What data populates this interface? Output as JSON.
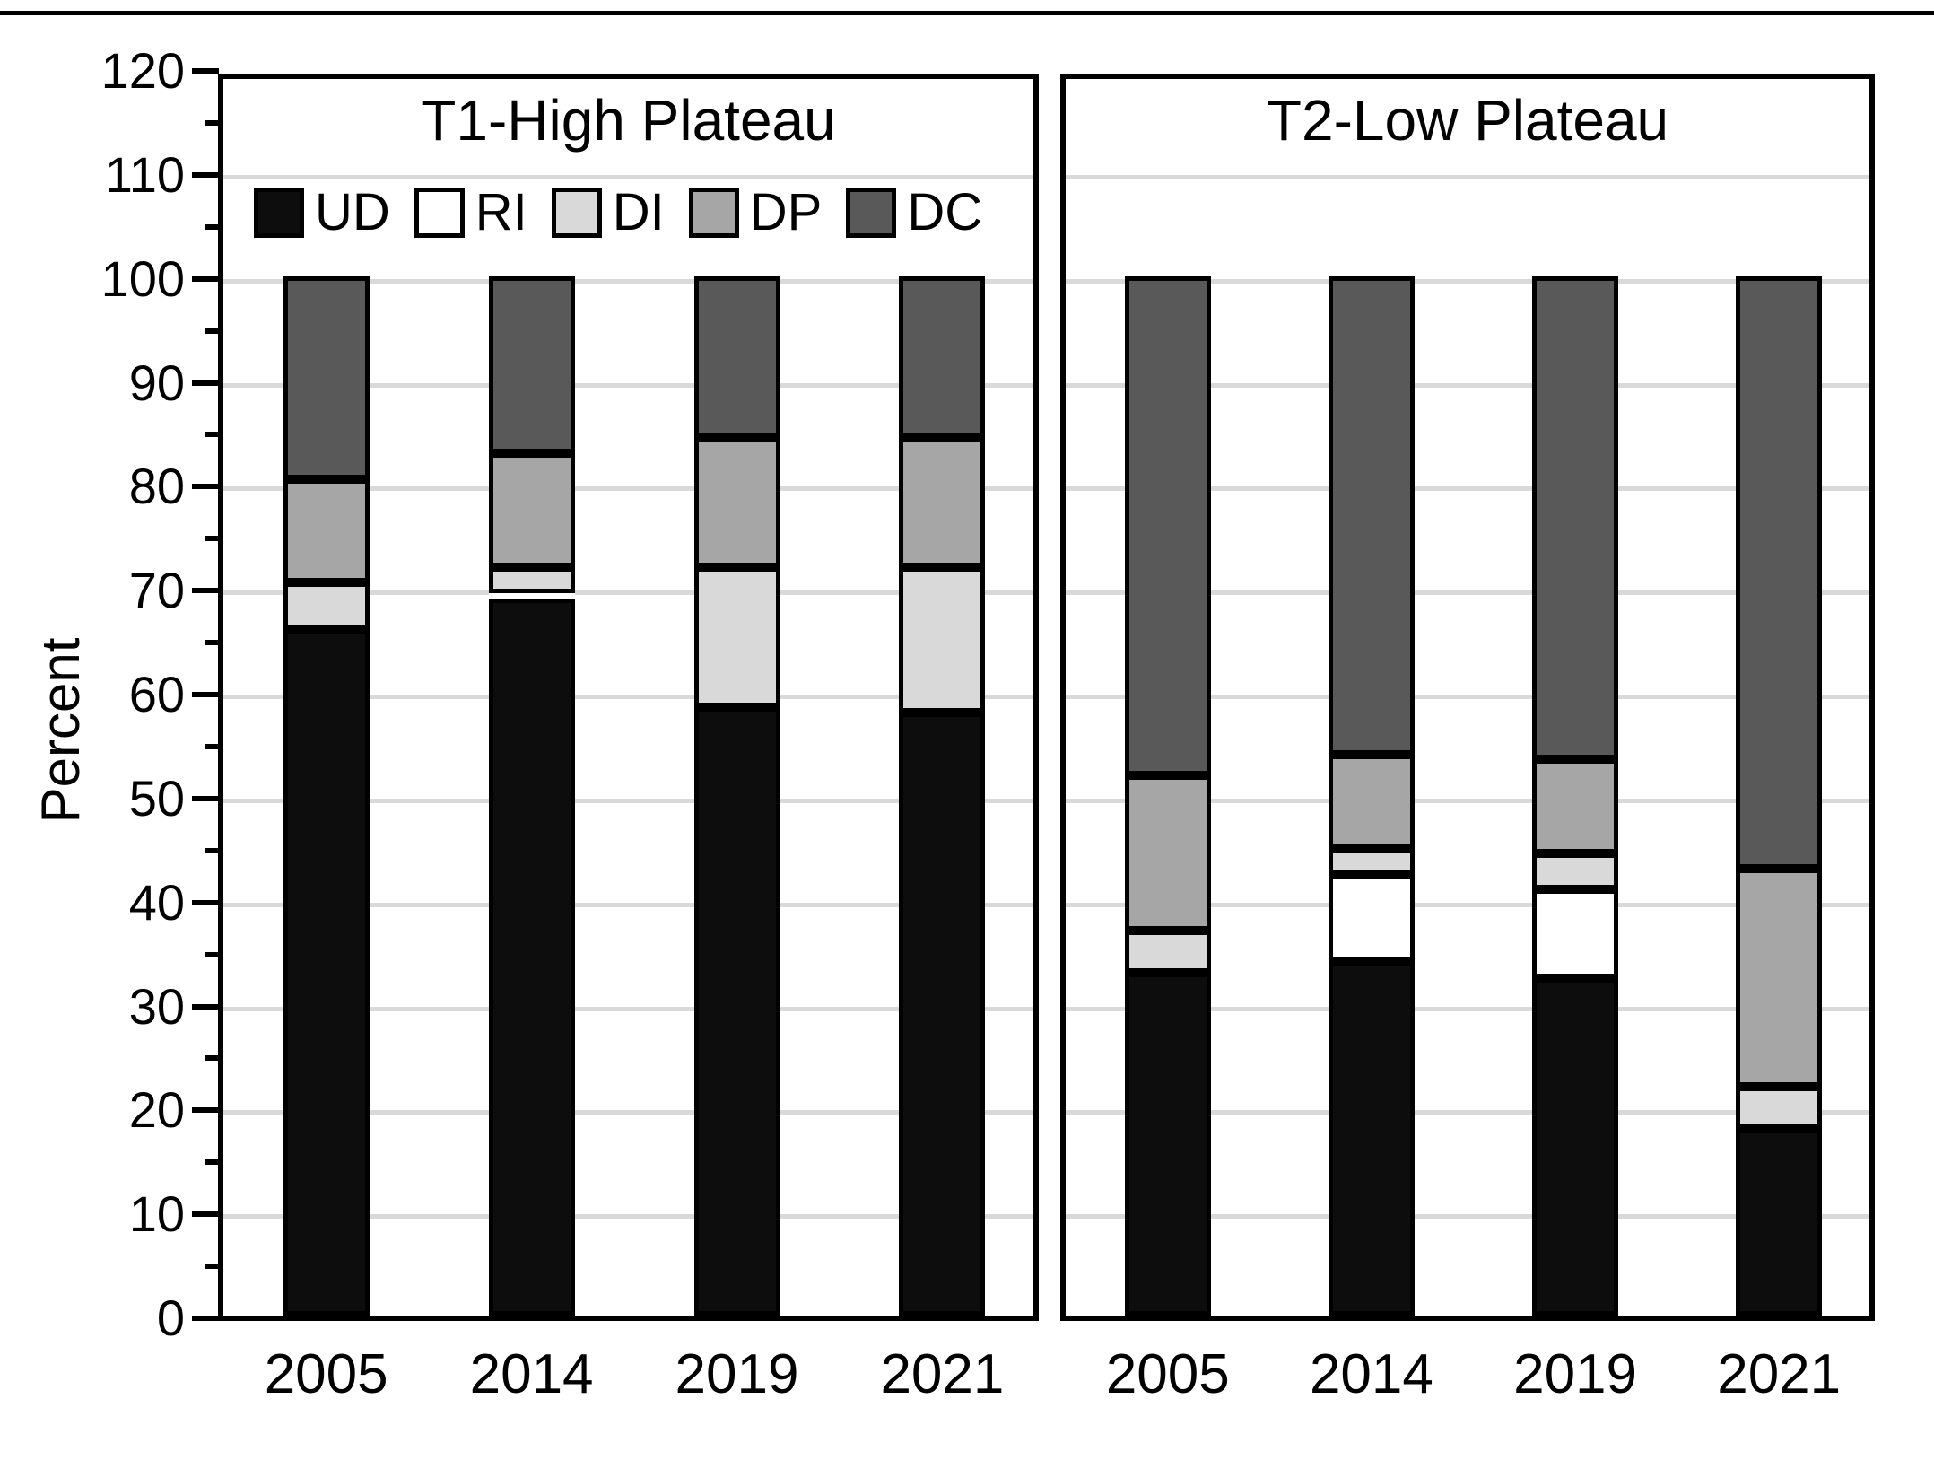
{
  "chart_data": {
    "type": "bar",
    "stacked": true,
    "title": "",
    "xlabel": "",
    "ylabel": "Percent",
    "ylim": [
      0,
      120
    ],
    "ytick_step": 10,
    "ytick_minor_step": 5,
    "grid": true,
    "legend_position": "top-left inside first panel",
    "categories": [
      "2005",
      "2014",
      "2019",
      "2021"
    ],
    "legend": [
      {
        "name": "UD",
        "color": "#0d0d0d"
      },
      {
        "name": "RI",
        "color": "#ffffff"
      },
      {
        "name": "DI",
        "color": "#d9d9d9"
      },
      {
        "name": "DP",
        "color": "#a6a6a6"
      },
      {
        "name": "DC",
        "color": "#595959"
      }
    ],
    "panels": [
      {
        "title": "T1-High Plateau",
        "series": [
          {
            "name": "UD",
            "values": [
              66,
              69,
              58.5,
              58
            ]
          },
          {
            "name": "RI",
            "values": [
              0,
              0.5,
              0,
              0
            ]
          },
          {
            "name": "DI",
            "values": [
              4.5,
              2.5,
              13.5,
              14
            ]
          },
          {
            "name": "DP",
            "values": [
              10,
              11,
              12.5,
              12.5
            ]
          },
          {
            "name": "DC",
            "values": [
              19.5,
              17,
              15.5,
              15.5
            ]
          }
        ]
      },
      {
        "title": "T2-Low Plateau",
        "series": [
          {
            "name": "UD",
            "values": [
              33,
              34,
              32.5,
              18
            ]
          },
          {
            "name": "RI",
            "values": [
              0,
              8.5,
              8.5,
              0
            ]
          },
          {
            "name": "DI",
            "values": [
              4,
              2.5,
              3.5,
              4
            ]
          },
          {
            "name": "DP",
            "values": [
              15,
              9,
              9,
              21
            ]
          },
          {
            "name": "DC",
            "values": [
              48,
              46,
              46.5,
              57
            ]
          }
        ]
      }
    ],
    "colors": {
      "axis": "#000000",
      "gridline": "#d9d9d9",
      "background": "#ffffff",
      "segment_border": "#000000"
    }
  }
}
